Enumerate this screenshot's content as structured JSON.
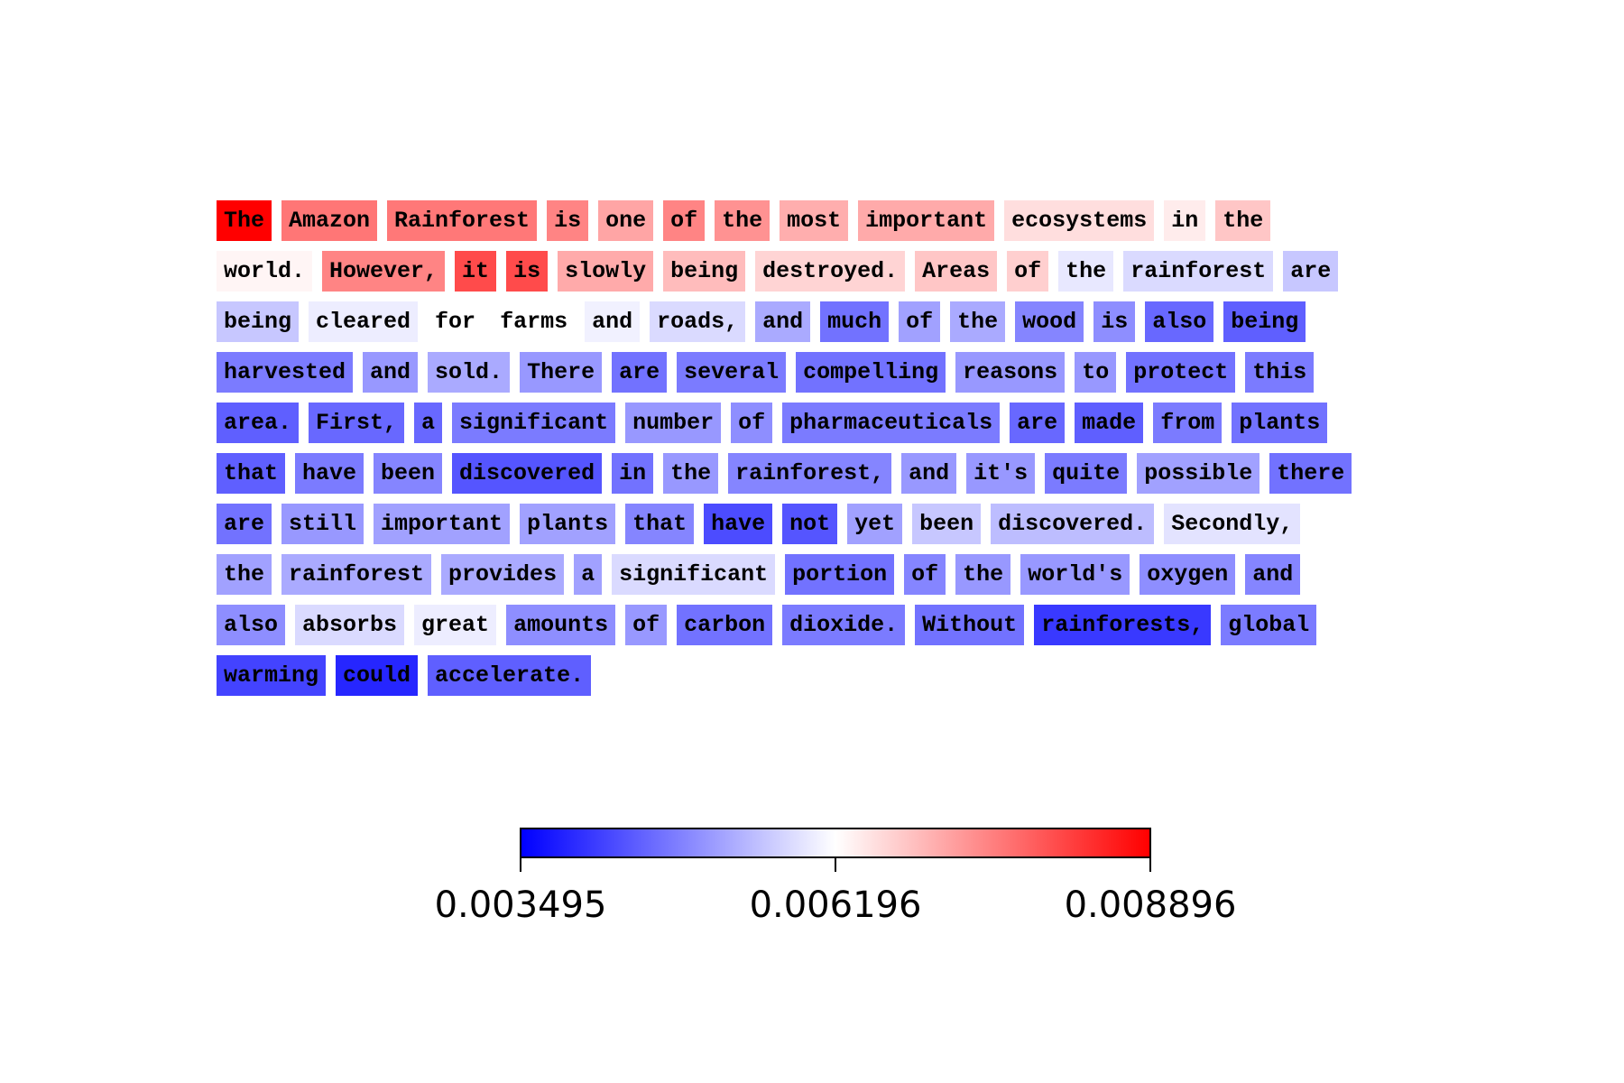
{
  "chart_data": {
    "type": "heatmap",
    "title": "",
    "colormap": "bwr",
    "colorbar": {
      "min": 0.003495,
      "mid": 0.006196,
      "max": 0.008896,
      "tick_labels": [
        "0.003495",
        "0.006196",
        "0.008896"
      ],
      "colors": {
        "low": "#0000ff",
        "mid": "#ffffff",
        "high": "#ff0000"
      }
    },
    "lines": [
      [
        {
          "text": "The",
          "value": 0.008896
        },
        {
          "text": "Amazon",
          "value": 0.00765
        },
        {
          "text": "Rainforest",
          "value": 0.00762
        },
        {
          "text": "is",
          "value": 0.0075
        },
        {
          "text": "one",
          "value": 0.00715
        },
        {
          "text": "of",
          "value": 0.0075
        },
        {
          "text": "the",
          "value": 0.00735
        },
        {
          "text": "most",
          "value": 0.00705
        },
        {
          "text": "important",
          "value": 0.0071
        },
        {
          "text": "ecosystems",
          "value": 0.00655
        },
        {
          "text": "in",
          "value": 0.0064
        },
        {
          "text": "the",
          "value": 0.0068
        }
      ],
      [
        {
          "text": "world.",
          "value": 0.0063
        },
        {
          "text": "However,",
          "value": 0.0075
        },
        {
          "text": "it",
          "value": 0.0081
        },
        {
          "text": "is",
          "value": 0.0081
        },
        {
          "text": "slowly",
          "value": 0.0071
        },
        {
          "text": "being",
          "value": 0.0069
        },
        {
          "text": "destroyed.",
          "value": 0.00665
        },
        {
          "text": "Areas",
          "value": 0.0068
        },
        {
          "text": "of",
          "value": 0.0067
        },
        {
          "text": "the",
          "value": 0.00595
        },
        {
          "text": "rainforest",
          "value": 0.0058
        },
        {
          "text": "are",
          "value": 0.0056
        }
      ],
      [
        {
          "text": "being",
          "value": 0.0056
        },
        {
          "text": "cleared",
          "value": 0.006
        },
        {
          "text": "for",
          "value": 0.0062
        },
        {
          "text": "farms",
          "value": 0.0062
        },
        {
          "text": "and",
          "value": 0.00605
        },
        {
          "text": "roads,",
          "value": 0.0058
        },
        {
          "text": "and",
          "value": 0.0053
        },
        {
          "text": "much",
          "value": 0.0047
        },
        {
          "text": "of",
          "value": 0.0052
        },
        {
          "text": "the",
          "value": 0.0053
        },
        {
          "text": "wood",
          "value": 0.0049
        },
        {
          "text": "is",
          "value": 0.005
        },
        {
          "text": "also",
          "value": 0.0046
        },
        {
          "text": "being",
          "value": 0.0045
        }
      ],
      [
        {
          "text": "harvested",
          "value": 0.0048
        },
        {
          "text": "and",
          "value": 0.0051
        },
        {
          "text": "sold.",
          "value": 0.0053
        },
        {
          "text": "There",
          "value": 0.0051
        },
        {
          "text": "are",
          "value": 0.0047
        },
        {
          "text": "several",
          "value": 0.0048
        },
        {
          "text": "compelling",
          "value": 0.0047
        },
        {
          "text": "reasons",
          "value": 0.0051
        },
        {
          "text": "to",
          "value": 0.0051
        },
        {
          "text": "protect",
          "value": 0.0047
        },
        {
          "text": "this",
          "value": 0.0048
        }
      ],
      [
        {
          "text": "area.",
          "value": 0.0045
        },
        {
          "text": "First,",
          "value": 0.0046
        },
        {
          "text": "a",
          "value": 0.0046
        },
        {
          "text": "significant",
          "value": 0.0048
        },
        {
          "text": "number",
          "value": 0.0051
        },
        {
          "text": "of",
          "value": 0.005
        },
        {
          "text": "pharmaceuticals",
          "value": 0.0048
        },
        {
          "text": "are",
          "value": 0.0046
        },
        {
          "text": "made",
          "value": 0.0045
        },
        {
          "text": "from",
          "value": 0.0048
        },
        {
          "text": "plants",
          "value": 0.0047
        }
      ],
      [
        {
          "text": "that",
          "value": 0.0045
        },
        {
          "text": "have",
          "value": 0.0048
        },
        {
          "text": "been",
          "value": 0.0049
        },
        {
          "text": "discovered",
          "value": 0.0044
        },
        {
          "text": "in",
          "value": 0.0047
        },
        {
          "text": "the",
          "value": 0.0051
        },
        {
          "text": "rainforest,",
          "value": 0.0049
        },
        {
          "text": "and",
          "value": 0.0051
        },
        {
          "text": "it's",
          "value": 0.0051
        },
        {
          "text": "quite",
          "value": 0.0048
        },
        {
          "text": "possible",
          "value": 0.0052
        },
        {
          "text": "there",
          "value": 0.0047
        }
      ],
      [
        {
          "text": "are",
          "value": 0.0047
        },
        {
          "text": "still",
          "value": 0.0051
        },
        {
          "text": "important",
          "value": 0.0052
        },
        {
          "text": "plants",
          "value": 0.0052
        },
        {
          "text": "that",
          "value": 0.0049
        },
        {
          "text": "have",
          "value": 0.0043
        },
        {
          "text": "not",
          "value": 0.0044
        },
        {
          "text": "yet",
          "value": 0.0052
        },
        {
          "text": "been",
          "value": 0.0056
        },
        {
          "text": "discovered.",
          "value": 0.0055
        },
        {
          "text": "Secondly,",
          "value": 0.0059
        }
      ],
      [
        {
          "text": "the",
          "value": 0.0052
        },
        {
          "text": "rainforest",
          "value": 0.0053
        },
        {
          "text": "provides",
          "value": 0.0053
        },
        {
          "text": "a",
          "value": 0.0052
        },
        {
          "text": "significant",
          "value": 0.0058
        },
        {
          "text": "portion",
          "value": 0.0047
        },
        {
          "text": "of",
          "value": 0.0049
        },
        {
          "text": "the",
          "value": 0.0051
        },
        {
          "text": "world's",
          "value": 0.0051
        },
        {
          "text": "oxygen",
          "value": 0.005
        },
        {
          "text": "and",
          "value": 0.0049
        }
      ],
      [
        {
          "text": "also",
          "value": 0.005
        },
        {
          "text": "absorbs",
          "value": 0.0058
        },
        {
          "text": "great",
          "value": 0.006
        },
        {
          "text": "amounts",
          "value": 0.005
        },
        {
          "text": "of",
          "value": 0.0051
        },
        {
          "text": "carbon",
          "value": 0.0047
        },
        {
          "text": "dioxide.",
          "value": 0.0048
        },
        {
          "text": "Without",
          "value": 0.0047
        },
        {
          "text": "rainforests,",
          "value": 0.0041
        },
        {
          "text": "global",
          "value": 0.0048
        }
      ],
      [
        {
          "text": "warming",
          "value": 0.0042
        },
        {
          "text": "could",
          "value": 0.0039
        },
        {
          "text": "accelerate.",
          "value": 0.0045
        }
      ]
    ]
  }
}
